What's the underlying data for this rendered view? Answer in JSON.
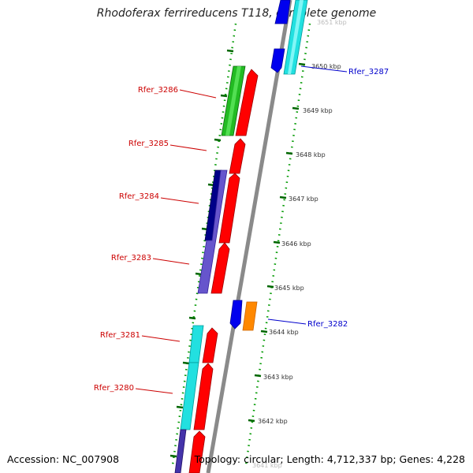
{
  "header": {
    "title": "Rhodoferax ferrireducens T118, complete genome"
  },
  "footer": {
    "accession": "Accession: NC_007908",
    "topology": "Topology: circular; Length: 4,712,337 bp; Genes: 4,228"
  },
  "ticks": [
    "3651 kbp",
    "3650 kbp",
    "3649 kbp",
    "3648 kbp",
    "3647 kbp",
    "3646 kbp",
    "3645 kbp",
    "3644 kbp",
    "3643 kbp",
    "3642 kbp",
    "3641 kbp"
  ],
  "gene_labels": {
    "rfer_3287": "Rfer_3287",
    "rfer_3286": "Rfer_3286",
    "rfer_3285": "Rfer_3285",
    "rfer_3284": "Rfer_3284",
    "rfer_3283": "Rfer_3283",
    "rfer_3282": "Rfer_3282",
    "rfer_3281": "Rfer_3281",
    "rfer_3280": "Rfer_3280"
  },
  "colors": {
    "cds": "#ff0000",
    "forward_label": "#0000cc",
    "reverse_label": "#cc0000",
    "backbone": "#999999",
    "tick": "#006600"
  }
}
